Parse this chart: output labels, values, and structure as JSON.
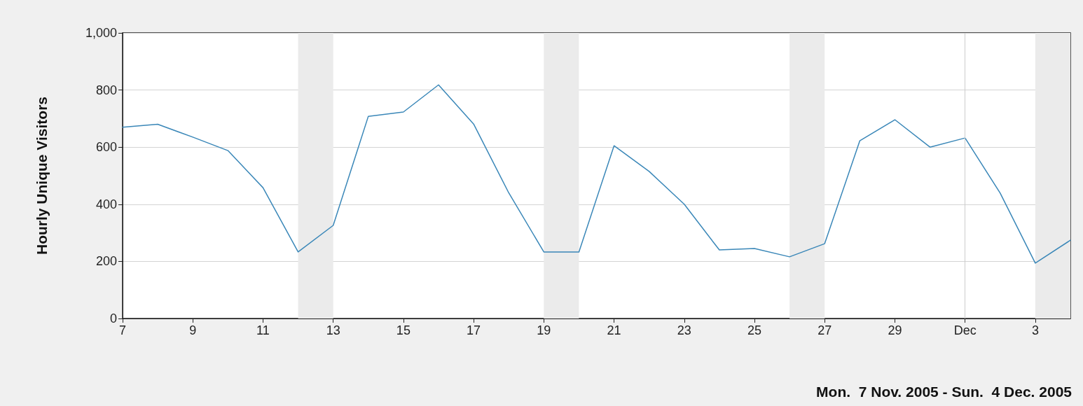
{
  "chart_data": {
    "type": "line",
    "ylabel": "Hourly Unique Visitors",
    "annotations": [
      "Mon.  7 Nov. 2005 - Sun.  4 Dec. 2005"
    ],
    "x": [
      "2005-11-07",
      "2005-11-08",
      "2005-11-09",
      "2005-11-10",
      "2005-11-11",
      "2005-11-12",
      "2005-11-13",
      "2005-11-14",
      "2005-11-15",
      "2005-11-16",
      "2005-11-17",
      "2005-11-18",
      "2005-11-19",
      "2005-11-20",
      "2005-11-21",
      "2005-11-22",
      "2005-11-23",
      "2005-11-24",
      "2005-11-25",
      "2005-11-26",
      "2005-11-27",
      "2005-11-28",
      "2005-11-29",
      "2005-11-30",
      "2005-12-01",
      "2005-12-02",
      "2005-12-03",
      "2005-12-04"
    ],
    "series": [
      {
        "color": "#3a87b8",
        "values": [
          670,
          680,
          635,
          588,
          458,
          233,
          326,
          708,
          723,
          818,
          681,
          440,
          233,
          233,
          605,
          515,
          400,
          240,
          245,
          216,
          262,
          622,
          696,
          600,
          632,
          439,
          194,
          274
        ]
      }
    ],
    "xlim": [
      "2005-11-07",
      "2005-12-04"
    ],
    "xticks": [
      {
        "value": "2005-11-07",
        "label": "7"
      },
      {
        "value": "2005-11-09",
        "label": "9"
      },
      {
        "value": "2005-11-11",
        "label": "11"
      },
      {
        "value": "2005-11-13",
        "label": "13"
      },
      {
        "value": "2005-11-15",
        "label": "15"
      },
      {
        "value": "2005-11-17",
        "label": "17"
      },
      {
        "value": "2005-11-19",
        "label": "19"
      },
      {
        "value": "2005-11-21",
        "label": "21"
      },
      {
        "value": "2005-11-23",
        "label": "23"
      },
      {
        "value": "2005-11-25",
        "label": "25"
      },
      {
        "value": "2005-11-27",
        "label": "27"
      },
      {
        "value": "2005-11-29",
        "label": "29"
      },
      {
        "value": "2005-12-01",
        "label": "Dec"
      },
      {
        "value": "2005-12-03",
        "label": "3"
      }
    ],
    "ylim": [
      0,
      1000
    ],
    "yticks": [
      0,
      200,
      400,
      600,
      800,
      {
        "value": 1000,
        "label": "1,000"
      }
    ],
    "grid": "y",
    "marker": "none",
    "line_style": "solid",
    "bands": [
      {
        "axis": "x",
        "from": "2005-11-12",
        "to": "2005-11-13",
        "color": "#ebebeb"
      },
      {
        "axis": "x",
        "from": "2005-11-19",
        "to": "2005-11-20",
        "color": "#ebebeb"
      },
      {
        "axis": "x",
        "from": "2005-11-26",
        "to": "2005-11-27",
        "color": "#ebebeb"
      },
      {
        "axis": "x",
        "from": "2005-12-03",
        "to": "2005-12-04",
        "color": "#ebebeb"
      }
    ],
    "ref_lines": [
      {
        "axis": "x",
        "value": "2005-12-01",
        "color": "#cccccc",
        "line_style": "solid"
      }
    ]
  }
}
